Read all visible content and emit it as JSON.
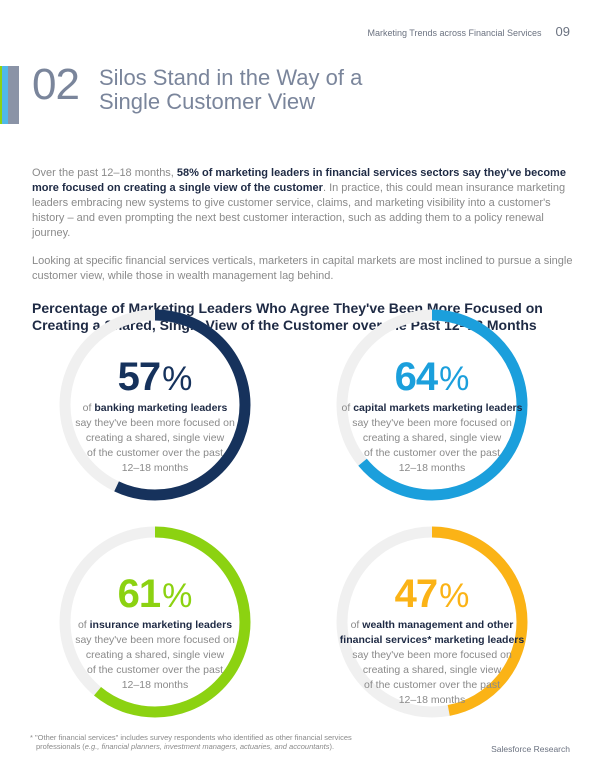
{
  "header": {
    "doc_title": "Marketing Trends across Financial Services",
    "page_number": "09"
  },
  "section": {
    "number": "02",
    "title_line1": "Silos Stand in the Way of a",
    "title_line2": "Single Customer View",
    "accent_colors": [
      "#8cd211",
      "#4fb8e8",
      "#8a93a6"
    ]
  },
  "intro": {
    "p1_lead": "Over the past 12–18 months, ",
    "p1_bold": "58% of marketing leaders in financial services sectors say they've become more focused on creating a single view of the customer",
    "p1_rest": ". In practice, this could mean insurance marketing leaders embracing new systems to give customer service, claims, and marketing visibility into a customer's history – and even prompting the next best customer interaction, such as adding them to a policy renewal journey.",
    "p2": "Looking at specific financial services verticals, marketers in capital markets are most inclined to pursue a single customer view, while those in wealth management lag behind."
  },
  "chart_data": {
    "type": "donut",
    "title": "Percentage of Marketing Leaders Who Agree They've Been More Focused on Creating a Shared, Single View of the Customer over the Past 12–18 Months",
    "track_color": "#f0f0f0",
    "items": [
      {
        "value": 57,
        "value_label": "57",
        "unit": "%",
        "prefix": "of ",
        "group": "banking marketing leaders",
        "group2": "",
        "desc": [
          "say they've been more focused on",
          "creating a shared, single view",
          "of the customer over the past",
          "12–18 months"
        ],
        "color": "#16325c"
      },
      {
        "value": 64,
        "value_label": "64",
        "unit": "%",
        "prefix": "of ",
        "group": "capital markets marketing leaders",
        "group2": "",
        "desc": [
          "say they've been more focused on",
          "creating a shared, single view",
          "of the customer over the past",
          "12–18 months"
        ],
        "color": "#1b9fdc"
      },
      {
        "value": 61,
        "value_label": "61",
        "unit": "%",
        "prefix": "of ",
        "group": "insurance marketing leaders",
        "group2": "",
        "desc": [
          "say they've been more focused on",
          "creating a shared, single view",
          "of the customer over the past",
          "12–18 months"
        ],
        "color": "#8cd211"
      },
      {
        "value": 47,
        "value_label": "47",
        "unit": "%",
        "prefix": "of ",
        "group": "wealth management and other",
        "group2": "financial services* marketing leaders",
        "desc": [
          "say they've been more focused on",
          "creating a shared, single view",
          "of the customer over the past",
          "12–18 months"
        ],
        "color": "#fbb316"
      }
    ]
  },
  "footnote": {
    "line1": "* \"Other financial services\" includes survey respondents who identified as other financial services",
    "line2_lead": "professionals (",
    "line2_italic": "e.g., financial planners, investment managers, actuaries, and accountants",
    "line2_end": ")."
  },
  "source": "Salesforce Research"
}
